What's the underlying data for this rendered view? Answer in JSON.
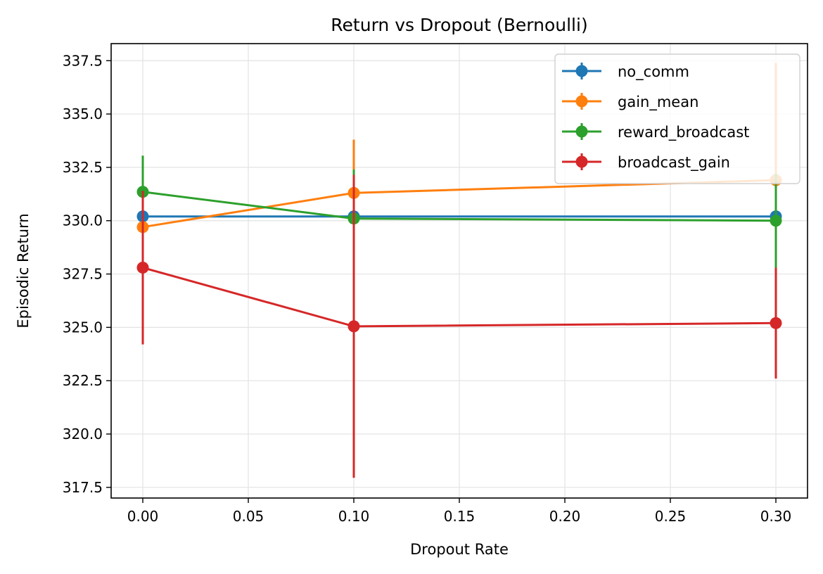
{
  "chart_data": {
    "type": "line",
    "title": "Return vs Dropout (Bernoulli)",
    "xlabel": "Dropout Rate",
    "ylabel": "Episodic Return",
    "x": [
      0.0,
      0.1,
      0.3
    ],
    "xlim": [
      -0.015,
      0.315
    ],
    "ylim": [
      317.0,
      338.3
    ],
    "xticks": [
      0.0,
      0.05,
      0.1,
      0.15,
      0.2,
      0.25,
      0.3
    ],
    "xtick_labels": [
      "0.00",
      "0.05",
      "0.10",
      "0.15",
      "0.20",
      "0.25",
      "0.30"
    ],
    "yticks": [
      317.5,
      320.0,
      322.5,
      325.0,
      327.5,
      330.0,
      332.5,
      335.0,
      337.5
    ],
    "ytick_labels": [
      "317.5",
      "320.0",
      "322.5",
      "325.0",
      "327.5",
      "330.0",
      "332.5",
      "335.0",
      "337.5"
    ],
    "grid": true,
    "legend_position": "top-right",
    "series": [
      {
        "name": "no_comm",
        "color": "#1f77b4",
        "values": [
          330.2,
          330.2,
          330.2
        ],
        "errors": [
          0.0,
          0.0,
          0.0
        ]
      },
      {
        "name": "gain_mean",
        "color": "#ff7f0e",
        "values": [
          329.7,
          331.3,
          331.9
        ],
        "errors": [
          1.0,
          2.5,
          5.5
        ]
      },
      {
        "name": "reward_broadcast",
        "color": "#2ca02c",
        "values": [
          331.35,
          330.1,
          330.0
        ],
        "errors": [
          1.7,
          2.3,
          2.2
        ]
      },
      {
        "name": "broadcast_gain",
        "color": "#d62728",
        "values": [
          327.8,
          325.05,
          325.2
        ],
        "errors": [
          3.6,
          7.1,
          2.6
        ]
      }
    ]
  }
}
